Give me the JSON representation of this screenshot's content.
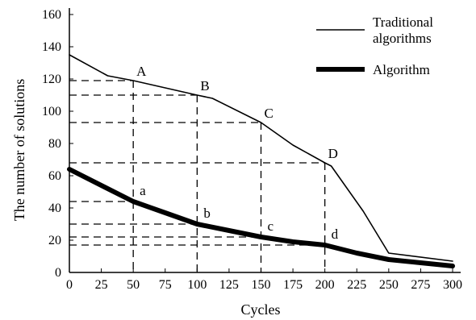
{
  "chart_data": {
    "type": "line",
    "xlabel": "Cycles",
    "ylabel": "The number of solutions",
    "xlim": [
      0,
      300
    ],
    "ylim": [
      0,
      160
    ],
    "x_ticks": [
      "0",
      "25",
      "50",
      "75",
      "100",
      "125",
      "150",
      "175",
      "200",
      "225",
      "250",
      "275",
      "300"
    ],
    "y_ticks": [
      "0",
      "20",
      "40",
      "60",
      "80",
      "100",
      "120",
      "140",
      "160"
    ],
    "grid": false,
    "legend_position": "top-right",
    "series": [
      {
        "name": "Traditional algorithms",
        "legend_lines": [
          "Traditional",
          "algorithms"
        ],
        "line_width": "thin",
        "color": "#000000",
        "points": [
          [
            0,
            135
          ],
          [
            30,
            122
          ],
          [
            50,
            119
          ],
          [
            100,
            110
          ],
          [
            112,
            108
          ],
          [
            150,
            93
          ],
          [
            175,
            79
          ],
          [
            200,
            68
          ],
          [
            205,
            66
          ],
          [
            230,
            38
          ],
          [
            250,
            12
          ],
          [
            300,
            7
          ]
        ]
      },
      {
        "name": "Algorithm",
        "legend_lines": [
          "Algorithm"
        ],
        "line_width": "thick",
        "color": "#000000",
        "points": [
          [
            0,
            64
          ],
          [
            50,
            44
          ],
          [
            75,
            37
          ],
          [
            100,
            30
          ],
          [
            125,
            26
          ],
          [
            150,
            22
          ],
          [
            175,
            19
          ],
          [
            200,
            17
          ],
          [
            225,
            12
          ],
          [
            250,
            8
          ],
          [
            275,
            6
          ],
          [
            300,
            4
          ]
        ]
      }
    ],
    "annotations": [
      {
        "label": "A",
        "x": 50,
        "y": 119,
        "series": 0
      },
      {
        "label": "B",
        "x": 100,
        "y": 110,
        "series": 0
      },
      {
        "label": "C",
        "x": 150,
        "y": 93,
        "series": 0
      },
      {
        "label": "D",
        "x": 200,
        "y": 68,
        "series": 0
      },
      {
        "label": "a",
        "x": 50,
        "y": 44,
        "series": 1
      },
      {
        "label": "b",
        "x": 100,
        "y": 30,
        "series": 1
      },
      {
        "label": "c",
        "x": 150,
        "y": 22,
        "series": 1
      },
      {
        "label": "d",
        "x": 200,
        "y": 17,
        "series": 1
      }
    ]
  }
}
